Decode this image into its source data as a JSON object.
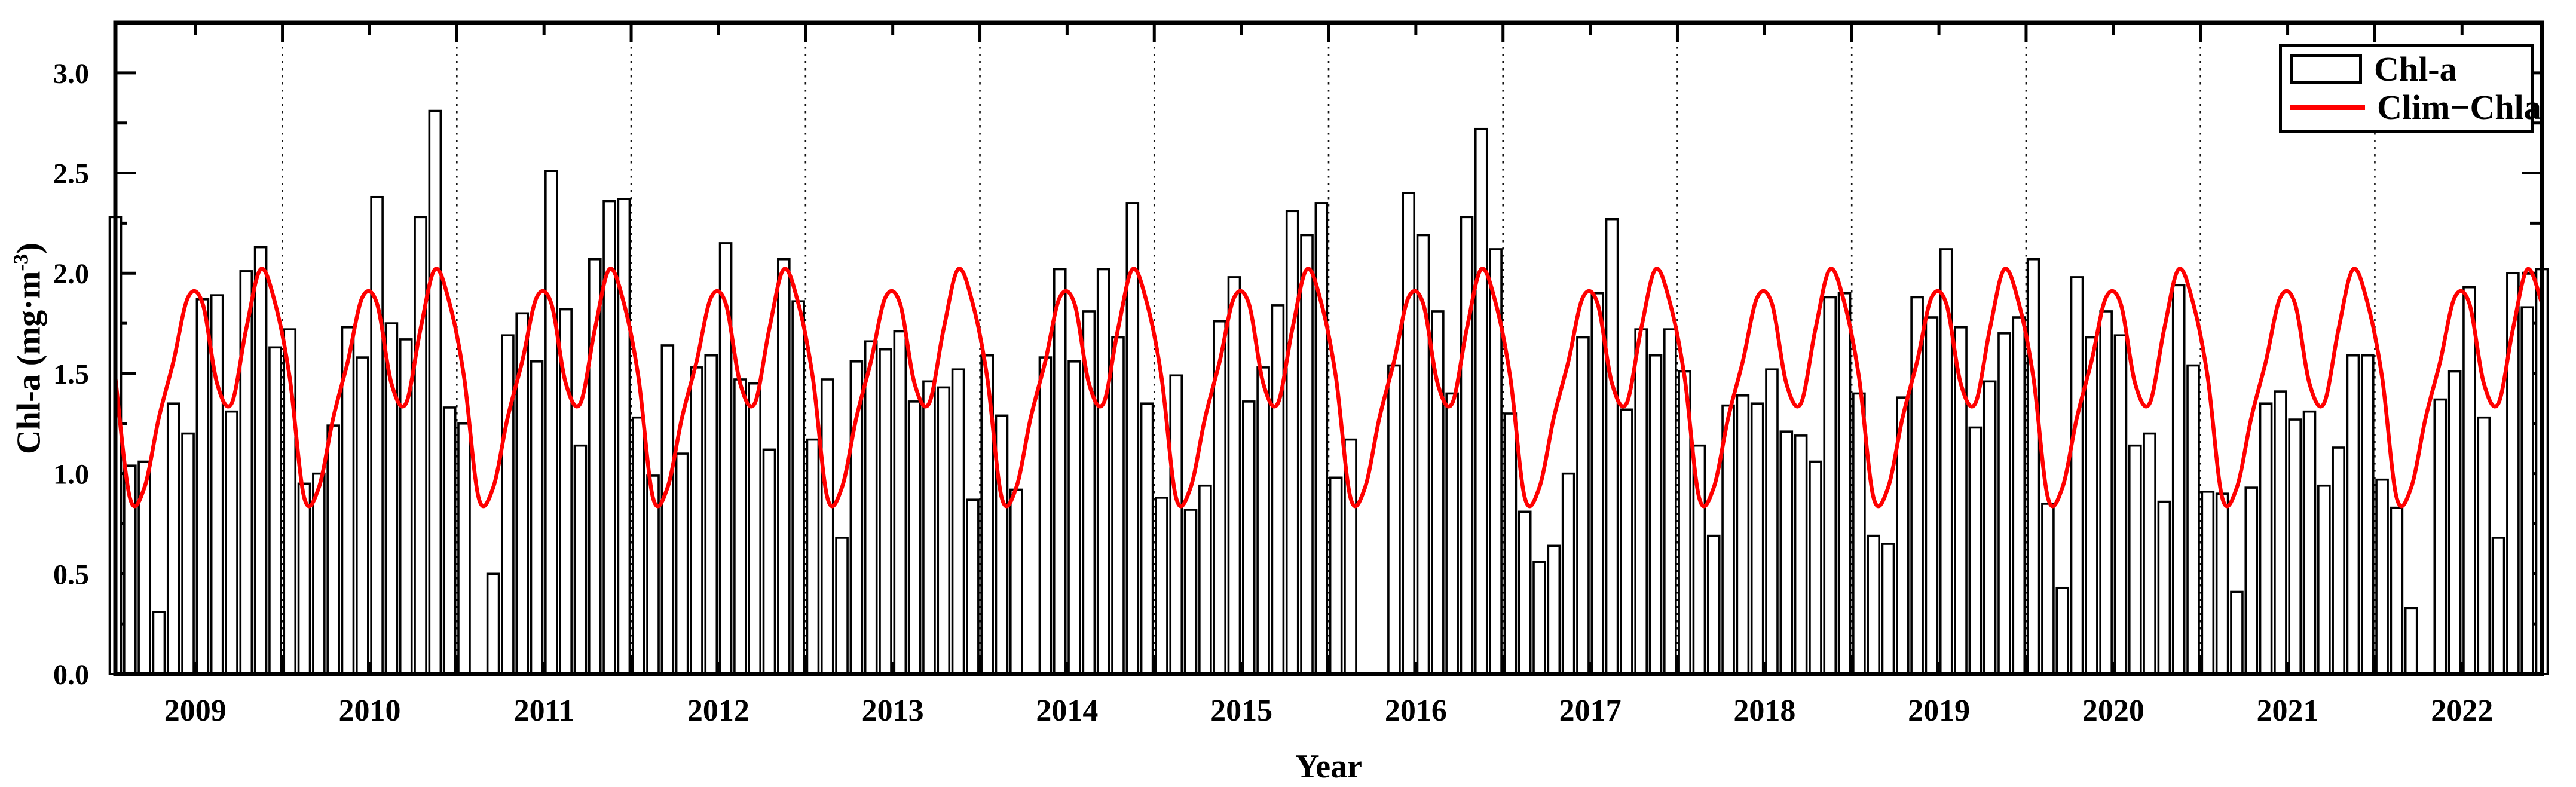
{
  "figure": {
    "xlabel": "Year",
    "ylabel": {
      "pre": "Chl-a (mg·m",
      "sup": "-3",
      "post": ")"
    },
    "legend": [
      {
        "label": "Chl-a",
        "swatch": "open-bar-rectangle",
        "color": "#000000"
      },
      {
        "label": "Clim−Chla",
        "swatch": "line",
        "color": "#ff0000"
      }
    ]
  },
  "style": {
    "frame_color": "#000000",
    "bar_fill": "#ffffff",
    "bar_stroke": "#000000",
    "line_color": "#ff0000",
    "background": "#ffffff"
  },
  "chart_data": {
    "type": "bar+line",
    "xlabel": "Year",
    "ylabel": "Chl-a (mg·m-3)",
    "ylim": [
      0,
      3.25
    ],
    "yticks": [
      0.0,
      0.5,
      1.0,
      1.5,
      2.0,
      2.5,
      3.0
    ],
    "y_minor_step": 0.25,
    "x_range": "Jan 2009 - Dec 2022",
    "grid": "dotted vertical line at each January (year boundary)",
    "legend_position": "top-right",
    "years": [
      2009,
      2010,
      2011,
      2012,
      2013,
      2014,
      2015,
      2016,
      2017,
      2018,
      2019,
      2020,
      2021,
      2022
    ],
    "bar_series": {
      "name": "Chl-a",
      "units": "mg·m-3",
      "monthly_values_by_year": {
        "2009": [
          2.28,
          1.04,
          1.06,
          0.31,
          1.35,
          1.2,
          1.87,
          1.89,
          1.31,
          2.01,
          2.13,
          1.63
        ],
        "2010": [
          1.72,
          0.95,
          1.0,
          1.24,
          1.73,
          1.58,
          2.38,
          1.75,
          1.67,
          2.28,
          2.81,
          1.33
        ],
        "2011": [
          1.25,
          null,
          0.5,
          1.69,
          1.8,
          1.56,
          2.51,
          1.82,
          1.14,
          2.07,
          2.36,
          2.37
        ],
        "2012": [
          1.28,
          0.99,
          1.64,
          1.1,
          1.53,
          1.59,
          2.15,
          1.47,
          1.45,
          1.12,
          2.07,
          1.86
        ],
        "2013": [
          1.17,
          1.47,
          0.68,
          1.56,
          1.66,
          1.62,
          1.71,
          1.36,
          1.46,
          1.43,
          1.52,
          0.87
        ],
        "2014": [
          1.59,
          1.29,
          0.92,
          null,
          1.58,
          2.02,
          1.56,
          1.81,
          2.02,
          1.68,
          2.35,
          1.35
        ],
        "2015": [
          0.88,
          1.49,
          0.82,
          0.94,
          1.76,
          1.98,
          1.36,
          1.53,
          1.84,
          2.31,
          2.19,
          2.35
        ],
        "2016": [
          0.98,
          1.17,
          null,
          null,
          1.54,
          2.4,
          2.19,
          1.81,
          1.4,
          2.28,
          2.72,
          2.12
        ],
        "2017": [
          1.3,
          0.81,
          0.56,
          0.64,
          1.0,
          1.68,
          1.9,
          2.27,
          1.32,
          1.72,
          1.59,
          1.72
        ],
        "2018": [
          1.51,
          1.14,
          0.69,
          1.34,
          1.39,
          1.35,
          1.52,
          1.21,
          1.19,
          1.06,
          1.88,
          1.9
        ],
        "2019": [
          1.4,
          0.69,
          0.65,
          1.38,
          1.88,
          1.78,
          2.12,
          1.73,
          1.23,
          1.46,
          1.7,
          1.78
        ],
        "2020": [
          2.07,
          0.85,
          0.43,
          1.98,
          1.68,
          1.81,
          1.69,
          1.14,
          1.2,
          0.86,
          1.94,
          1.54
        ],
        "2021": [
          0.91,
          0.9,
          0.41,
          0.93,
          1.35,
          1.41,
          1.27,
          1.31,
          0.94,
          1.13,
          1.59,
          1.59
        ],
        "2022": [
          0.97,
          0.83,
          0.33,
          null,
          1.37,
          1.51,
          1.93,
          1.28,
          0.68,
          2.0,
          1.83,
          2.02
        ]
      }
    },
    "line_series": {
      "name": "Clim−Chla",
      "color": "#ff0000",
      "description": "monthly climatology, identical cycle repeated every year",
      "monthly_climatology": [
        1.48,
        0.88,
        0.93,
        1.28,
        1.56,
        1.88,
        1.85,
        1.45,
        1.35,
        1.72,
        2.02,
        1.85
      ]
    }
  }
}
